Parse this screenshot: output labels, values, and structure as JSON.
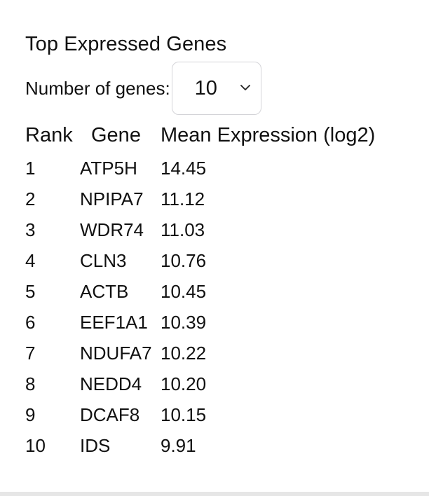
{
  "panel": {
    "title": "Top Expressed Genes",
    "control": {
      "label": "Number of genes:",
      "selected": "10"
    }
  },
  "table": {
    "headers": {
      "rank": "Rank",
      "gene": "Gene",
      "expression": "Mean Expression (log2)"
    },
    "rows": [
      {
        "rank": "1",
        "gene": "ATP5H",
        "expression": "14.45"
      },
      {
        "rank": "2",
        "gene": "NPIPA7",
        "expression": "11.12"
      },
      {
        "rank": "3",
        "gene": "WDR74",
        "expression": "11.03"
      },
      {
        "rank": "4",
        "gene": "CLN3",
        "expression": "10.76"
      },
      {
        "rank": "5",
        "gene": "ACTB",
        "expression": "10.45"
      },
      {
        "rank": "6",
        "gene": "EEF1A1",
        "expression": "10.39"
      },
      {
        "rank": "7",
        "gene": "NDUFA7",
        "expression": "10.22"
      },
      {
        "rank": "8",
        "gene": "NEDD4",
        "expression": "10.20"
      },
      {
        "rank": "9",
        "gene": "DCAF8",
        "expression": "10.15"
      },
      {
        "rank": "10",
        "gene": "IDS",
        "expression": "9.91"
      }
    ]
  }
}
